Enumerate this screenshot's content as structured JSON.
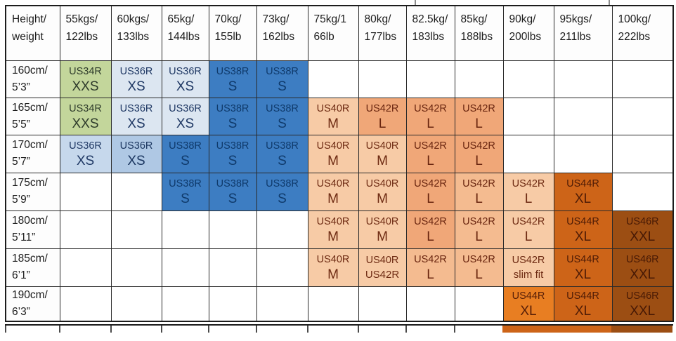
{
  "colors": {
    "green": "#c3d69b",
    "blue_pale": "#dce6f1",
    "blue_light": "#c6d8ec",
    "blue_mid": "#afc8e4",
    "blue": "#3d7dc2",
    "peach": "#f7cba6",
    "orange_light": "#f4bb90",
    "orange": "#f0a778",
    "orange_bright": "#e87e22",
    "orange_burnt": "#cd6418",
    "brown": "#9c4e13",
    "border": "#2a2a2a",
    "header_text": "#1c1c1c"
  },
  "cell_text": {
    "green": "#2e3b2b",
    "blue_pale": "#1f3864",
    "blue_light": "#1f3864",
    "blue_mid": "#1b3660",
    "blue": "#0f3a6b",
    "peach": "#6e2b13",
    "orange_light": "#69250f",
    "orange": "#69250f",
    "orange_bright": "#571e07",
    "orange_burnt": "#4f1c06",
    "brown": "#471905"
  },
  "table": {
    "corner": {
      "line1": "Height/",
      "line2": "weight"
    },
    "weight_headers": [
      {
        "line1": "55kgs/",
        "line2": "122lbs"
      },
      {
        "line1": "60kgs/",
        "line2": "133lbs"
      },
      {
        "line1": "65kg/",
        "line2": "144lbs"
      },
      {
        "line1": "70kg/",
        "line2": "155lb"
      },
      {
        "line1": "73kg/",
        "line2": "162lbs"
      },
      {
        "line1": "75kg/1",
        "line2": "66lb"
      },
      {
        "line1": "80kg/",
        "line2": "177lbs"
      },
      {
        "line1": "82.5kg/",
        "line2": "183lbs"
      },
      {
        "line1": "85kg/",
        "line2": "188lbs"
      },
      {
        "line1": "90kg/",
        "line2": "200lbs"
      },
      {
        "line1": "95kgs/",
        "line2": "211lbs"
      },
      {
        "line1": "100kg/",
        "line2": "222lbs"
      }
    ],
    "rows": [
      {
        "height": {
          "line1": "160cm/",
          "line2": "5’3”"
        },
        "cells": [
          {
            "l1": "US34R",
            "l2": "XXS",
            "bg": "green"
          },
          {
            "l1": "US36R",
            "l2": "XS",
            "bg": "blue_pale"
          },
          {
            "l1": "US36R",
            "l2": "XS",
            "bg": "blue_pale"
          },
          {
            "l1": "US38R",
            "l2": "S",
            "bg": "blue"
          },
          {
            "l1": "US38R",
            "l2": "S",
            "bg": "blue"
          },
          null,
          null,
          null,
          null,
          null,
          null,
          null
        ]
      },
      {
        "height": {
          "line1": "165cm/",
          "line2": "5’5”"
        },
        "cells": [
          {
            "l1": "US34R",
            "l2": "XXS",
            "bg": "green"
          },
          {
            "l1": "US36R",
            "l2": "XS",
            "bg": "blue_pale"
          },
          {
            "l1": "US36R",
            "l2": "XS",
            "bg": "blue_pale"
          },
          {
            "l1": "US38R",
            "l2": "S",
            "bg": "blue"
          },
          {
            "l1": "US38R",
            "l2": "S",
            "bg": "blue"
          },
          {
            "l1": "US40R",
            "l2": "M",
            "bg": "peach"
          },
          {
            "l1": "US42R",
            "l2": "L",
            "bg": "orange"
          },
          {
            "l1": "US42R",
            "l2": "L",
            "bg": "orange"
          },
          {
            "l1": "US42R",
            "l2": "L",
            "bg": "orange"
          },
          null,
          null,
          null
        ]
      },
      {
        "height": {
          "line1": "170cm/",
          "line2": "5’7”"
        },
        "cells": [
          {
            "l1": "US36R",
            "l2": "XS",
            "bg": "blue_light"
          },
          {
            "l1": "US36R",
            "l2": "XS",
            "bg": "blue_mid"
          },
          {
            "l1": "US38R",
            "l2": "S",
            "bg": "blue"
          },
          {
            "l1": "US38R",
            "l2": "S",
            "bg": "blue"
          },
          {
            "l1": "US38R",
            "l2": "S",
            "bg": "blue"
          },
          {
            "l1": "US40R",
            "l2": "M",
            "bg": "peach"
          },
          {
            "l1": "US40R",
            "l2": "M",
            "bg": "peach"
          },
          {
            "l1": "US42R",
            "l2": "L",
            "bg": "orange"
          },
          {
            "l1": "US42R",
            "l2": "L",
            "bg": "orange"
          },
          null,
          null,
          null
        ]
      },
      {
        "height": {
          "line1": "175cm/",
          "line2": "5’9”"
        },
        "cells": [
          null,
          null,
          {
            "l1": "US38R",
            "l2": "S",
            "bg": "blue"
          },
          {
            "l1": "US38R",
            "l2": "S",
            "bg": "blue"
          },
          {
            "l1": "US38R",
            "l2": "S",
            "bg": "blue"
          },
          {
            "l1": "US40R",
            "l2": "M",
            "bg": "peach"
          },
          {
            "l1": "US40R",
            "l2": "M",
            "bg": "peach"
          },
          {
            "l1": "US42R",
            "l2": "L",
            "bg": "orange"
          },
          {
            "l1": "US42R",
            "l2": "L",
            "bg": "orange_light"
          },
          {
            "l1": "US42R",
            "l2": "L",
            "bg": "peach"
          },
          {
            "l1": "US44R",
            "l2": "XL",
            "bg": "orange_burnt"
          },
          null
        ]
      },
      {
        "height": {
          "line1": "180cm/",
          "line2": "5’11”"
        },
        "cells": [
          null,
          null,
          null,
          null,
          null,
          {
            "l1": "US40R",
            "l2": "M",
            "bg": "peach"
          },
          {
            "l1": "US40R",
            "l2": "M",
            "bg": "peach"
          },
          {
            "l1": "US42R",
            "l2": "L",
            "bg": "orange"
          },
          {
            "l1": "US42R",
            "l2": "L",
            "bg": "orange_light"
          },
          {
            "l1": "US42R",
            "l2": "L",
            "bg": "peach"
          },
          {
            "l1": "US44R",
            "l2": "XL",
            "bg": "orange_burnt"
          },
          {
            "l1": "US46R",
            "l2": "XXL",
            "bg": "brown"
          }
        ]
      },
      {
        "height": {
          "line1": "185cm/",
          "line2": "6’1”"
        },
        "cells": [
          null,
          null,
          null,
          null,
          null,
          {
            "l1": "US40R",
            "l2": "M",
            "bg": "peach"
          },
          {
            "l1": "US40R",
            "l2": "US42R",
            "bg": "peach",
            "small2": true
          },
          {
            "l1": "US42R",
            "l2": "L",
            "bg": "orange_light"
          },
          {
            "l1": "US42R",
            "l2": "L",
            "bg": "orange_light"
          },
          {
            "l1": "US42R",
            "l2": "slim fit",
            "bg": "peach",
            "small2": true
          },
          {
            "l1": "US44R",
            "l2": "XL",
            "bg": "orange_burnt"
          },
          {
            "l1": "US46R",
            "l2": "XXL",
            "bg": "brown"
          }
        ]
      },
      {
        "height": {
          "line1": "190cm/",
          "line2": "6’3”"
        },
        "cells": [
          null,
          null,
          null,
          null,
          null,
          null,
          null,
          null,
          null,
          {
            "l1": "US44R",
            "l2": "XL",
            "bg": "orange_bright"
          },
          {
            "l1": "US44R",
            "l2": "XL",
            "bg": "orange_burnt"
          },
          {
            "l1": "US46R",
            "l2": "XXL",
            "bg": "brown"
          }
        ]
      }
    ]
  },
  "chart_data": {
    "type": "table",
    "title": "Height / weight suit size chart",
    "columns": [
      "Height/weight",
      "55kgs/122lbs",
      "60kgs/133lbs",
      "65kg/144lbs",
      "70kg/155lb",
      "73kg/162lbs",
      "75kg/166lb",
      "80kg/177lbs",
      "82.5kg/183lbs",
      "85kg/188lbs",
      "90kg/200lbs",
      "95kgs/211lbs",
      "100kg/222lbs"
    ],
    "rows": [
      [
        "160cm/5’3”",
        "US34R XXS",
        "US36R XS",
        "US36R XS",
        "US38R S",
        "US38R S",
        "",
        "",
        "",
        "",
        "",
        "",
        ""
      ],
      [
        "165cm/5’5”",
        "US34R XXS",
        "US36R XS",
        "US36R XS",
        "US38R S",
        "US38R S",
        "US40R M",
        "US42R L",
        "US42R L",
        "US42R L",
        "",
        "",
        ""
      ],
      [
        "170cm/5’7”",
        "US36R XS",
        "US36R XS",
        "US38R S",
        "US38R S",
        "US38R S",
        "US40R M",
        "US40R M",
        "US42R L",
        "US42R L",
        "",
        "",
        ""
      ],
      [
        "175cm/5’9”",
        "",
        "",
        "US38R S",
        "US38R S",
        "US38R S",
        "US40R M",
        "US40R M",
        "US42R L",
        "US42R L",
        "US42R L",
        "US44R XL",
        ""
      ],
      [
        "180cm/5’11”",
        "",
        "",
        "",
        "",
        "",
        "US40R M",
        "US40R M",
        "US42R L",
        "US42R L",
        "US42R L",
        "US44R XL",
        "US46R XXL"
      ],
      [
        "185cm/6’1”",
        "",
        "",
        "",
        "",
        "",
        "US40R M",
        "US40R US42R",
        "US42R L",
        "US42R L",
        "US42R slim fit",
        "US44R XL",
        "US46R XXL"
      ],
      [
        "190cm/6’3”",
        "",
        "",
        "",
        "",
        "",
        "",
        "",
        "",
        "",
        "US44R XL",
        "US44R XL",
        "US46R XXL"
      ]
    ]
  }
}
